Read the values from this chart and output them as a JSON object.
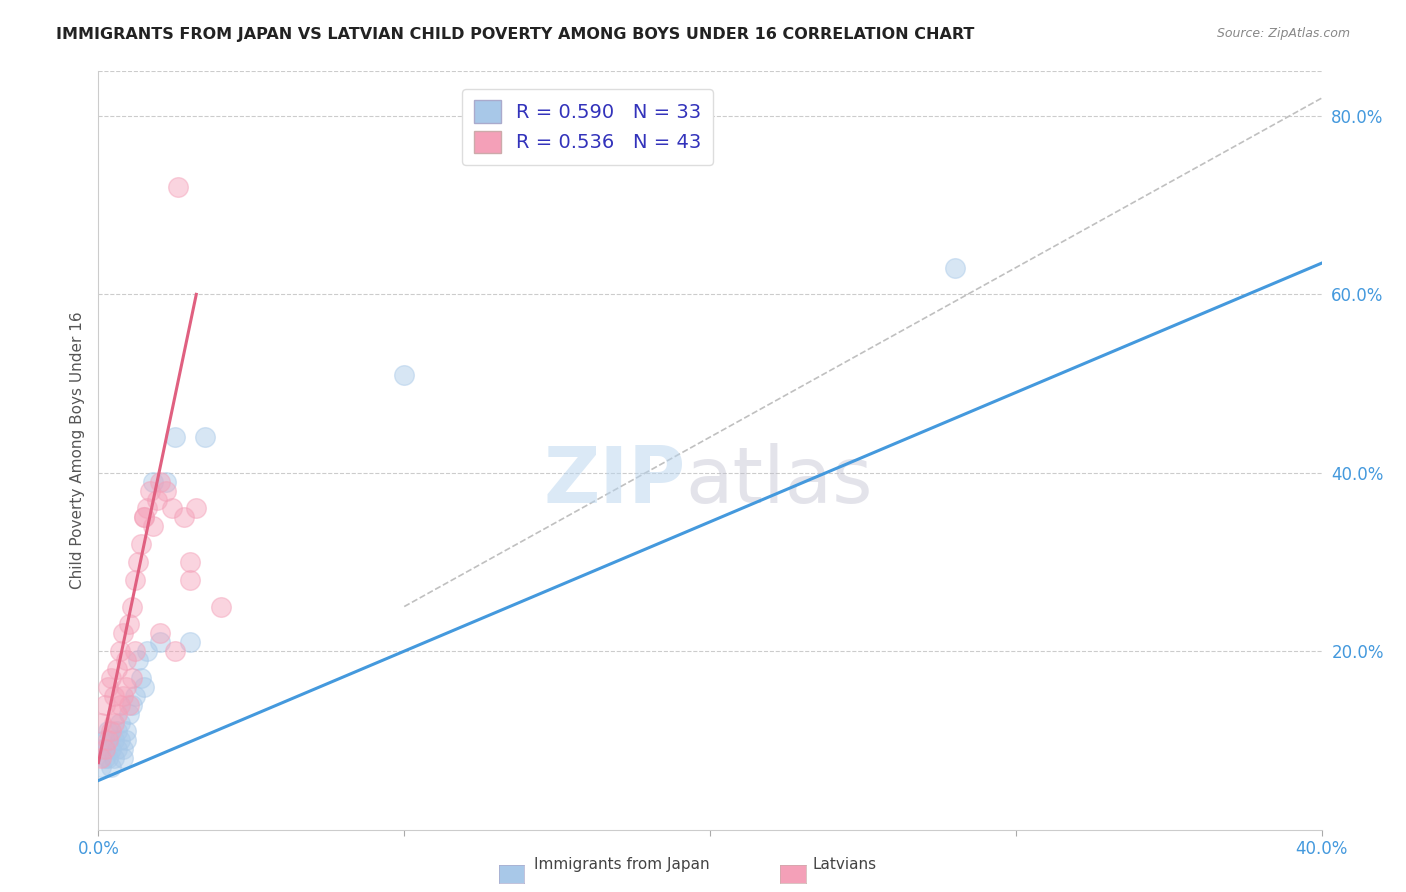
{
  "title": "IMMIGRANTS FROM JAPAN VS LATVIAN CHILD POVERTY AMONG BOYS UNDER 16 CORRELATION CHART",
  "source": "Source: ZipAtlas.com",
  "ylabel": "Child Poverty Among Boys Under 16",
  "xlim": [
    0.0,
    0.4
  ],
  "ylim": [
    0.0,
    0.85
  ],
  "xticks": [
    0.0,
    0.1,
    0.2,
    0.3,
    0.4
  ],
  "xtick_labels": [
    "0.0%",
    "",
    "",
    "",
    "40.0%"
  ],
  "yticks_right": [
    0.2,
    0.4,
    0.6,
    0.8
  ],
  "ytick_labels_right": [
    "20.0%",
    "40.0%",
    "60.0%",
    "80.0%"
  ],
  "blue_color": "#a8c8e8",
  "pink_color": "#f4a0b8",
  "blue_line_color": "#4499dd",
  "pink_line_color": "#e06080",
  "legend_R_blue": "R = 0.590",
  "legend_N_blue": "N = 33",
  "legend_R_pink": "R = 0.536",
  "legend_N_pink": "N = 43",
  "blue_scatter_x": [
    0.001,
    0.002,
    0.001,
    0.003,
    0.002,
    0.004,
    0.003,
    0.005,
    0.004,
    0.006,
    0.005,
    0.007,
    0.006,
    0.008,
    0.007,
    0.009,
    0.008,
    0.01,
    0.009,
    0.011,
    0.012,
    0.014,
    0.013,
    0.015,
    0.016,
    0.018,
    0.02,
    0.022,
    0.025,
    0.03,
    0.035,
    0.1,
    0.28
  ],
  "blue_scatter_y": [
    0.07,
    0.08,
    0.09,
    0.08,
    0.1,
    0.09,
    0.11,
    0.1,
    0.07,
    0.09,
    0.08,
    0.1,
    0.11,
    0.09,
    0.12,
    0.1,
    0.08,
    0.13,
    0.11,
    0.14,
    0.15,
    0.17,
    0.19,
    0.16,
    0.2,
    0.39,
    0.21,
    0.39,
    0.44,
    0.21,
    0.44,
    0.51,
    0.63
  ],
  "pink_scatter_x": [
    0.001,
    0.001,
    0.002,
    0.002,
    0.003,
    0.003,
    0.004,
    0.004,
    0.005,
    0.005,
    0.006,
    0.006,
    0.007,
    0.007,
    0.008,
    0.008,
    0.009,
    0.009,
    0.01,
    0.01,
    0.011,
    0.011,
    0.012,
    0.012,
    0.013,
    0.014,
    0.015,
    0.016,
    0.017,
    0.018,
    0.019,
    0.02,
    0.022,
    0.024,
    0.026,
    0.028,
    0.03,
    0.032,
    0.015,
    0.02,
    0.025,
    0.03,
    0.04
  ],
  "pink_scatter_y": [
    0.08,
    0.12,
    0.09,
    0.14,
    0.1,
    0.16,
    0.11,
    0.17,
    0.12,
    0.15,
    0.13,
    0.18,
    0.14,
    0.2,
    0.15,
    0.22,
    0.16,
    0.19,
    0.14,
    0.23,
    0.17,
    0.25,
    0.2,
    0.28,
    0.3,
    0.32,
    0.35,
    0.36,
    0.38,
    0.34,
    0.37,
    0.39,
    0.38,
    0.36,
    0.72,
    0.35,
    0.3,
    0.36,
    0.35,
    0.22,
    0.2,
    0.28,
    0.25
  ],
  "blue_line_x": [
    0.0,
    0.4
  ],
  "blue_line_y": [
    0.055,
    0.635
  ],
  "pink_line_x": [
    0.0,
    0.032
  ],
  "pink_line_y": [
    0.075,
    0.6
  ],
  "diag_line_x": [
    0.1,
    0.4
  ],
  "diag_line_y": [
    0.25,
    0.82
  ],
  "scatter_size": 200,
  "scatter_alpha": 0.45
}
